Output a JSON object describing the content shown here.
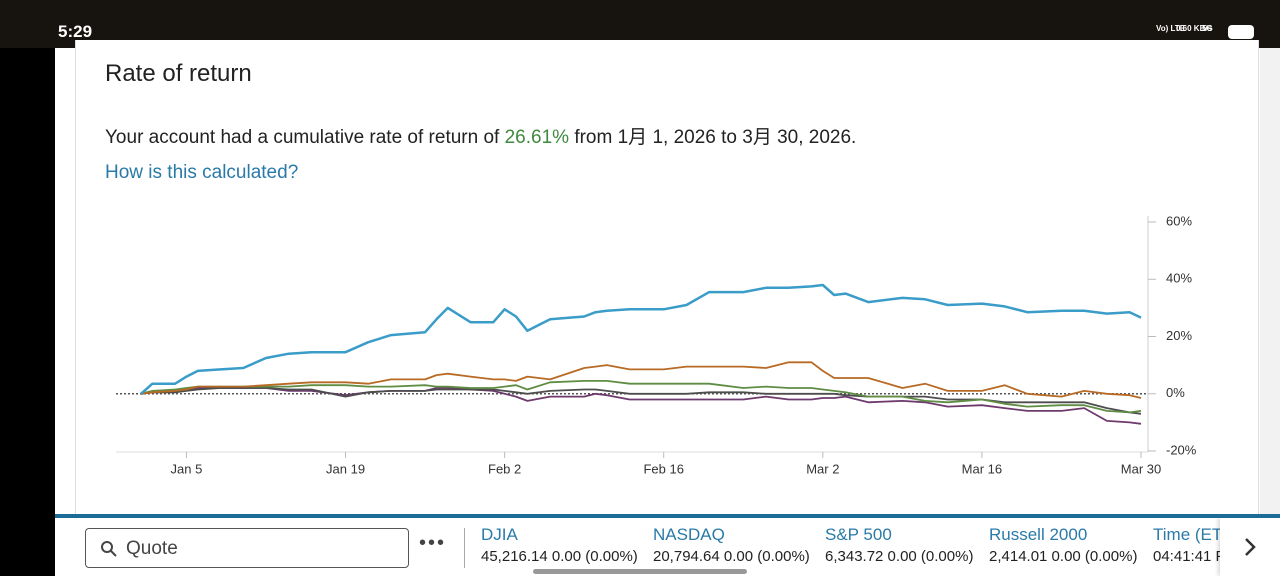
{
  "status_bar": {
    "time": "5:29",
    "network": "Vo) LTE",
    "speed": "0.60 KB/s",
    "signal": "5G"
  },
  "header": {
    "title": "Rate of return"
  },
  "summary": {
    "before": "Your account had a cumulative rate of return of ",
    "rate": "26.61%",
    "after": " from 1月 1, 2026 to 3月 30, 2026."
  },
  "link": "How is this calculated?",
  "chart_data": {
    "type": "line",
    "x": [
      "Jan 1",
      "Jan 2",
      "Jan 4",
      "Jan 5",
      "Jan 6",
      "Jan 8",
      "Jan 10",
      "Jan 12",
      "Jan 14",
      "Jan 16",
      "Jan 19",
      "Jan 21",
      "Jan 23",
      "Jan 26",
      "Jan 27",
      "Jan 28",
      "Jan 30",
      "Feb 1",
      "Feb 2",
      "Feb 3",
      "Feb 4",
      "Feb 6",
      "Feb 9",
      "Feb 10",
      "Feb 11",
      "Feb 13",
      "Feb 16",
      "Feb 18",
      "Feb 20",
      "Feb 23",
      "Feb 25",
      "Feb 27",
      "Mar 1",
      "Mar 2",
      "Mar 3",
      "Mar 4",
      "Mar 6",
      "Mar 9",
      "Mar 11",
      "Mar 13",
      "Mar 16",
      "Mar 18",
      "Mar 20",
      "Mar 23",
      "Mar 25",
      "Mar 27",
      "Mar 29",
      "Mar 30"
    ],
    "series": [
      {
        "color": "#3a9cc8",
        "values": [
          0,
          3.5,
          3.5,
          6,
          8,
          8.5,
          9,
          12.5,
          14,
          14.5,
          14.5,
          18,
          20.5,
          21.5,
          26,
          30,
          25,
          25,
          29.5,
          27,
          22,
          26,
          27,
          28.5,
          29,
          29.5,
          29.5,
          31,
          35.5,
          35.5,
          37,
          37,
          37.5,
          38,
          34.5,
          35,
          32,
          33.5,
          33,
          31,
          31.5,
          30.5,
          28.5,
          29,
          29,
          28,
          28.5,
          26.61
        ]
      },
      {
        "color": "#b86a24",
        "values": [
          0,
          0.5,
          1,
          1.5,
          2.5,
          2.5,
          2.5,
          3,
          3.5,
          4,
          4,
          3.5,
          5,
          5,
          6.5,
          7,
          6,
          5,
          5,
          4.5,
          6,
          5,
          9,
          9.5,
          10,
          8.5,
          8.5,
          9.5,
          9.5,
          9.5,
          9,
          11,
          11,
          8,
          5.5,
          5.5,
          5.5,
          2,
          3.5,
          1,
          1,
          3,
          0,
          -1,
          1,
          0,
          -0.5,
          -1.5
        ]
      },
      {
        "color": "#5f8d43",
        "values": [
          0,
          1,
          1.5,
          2,
          2.5,
          2.5,
          2.5,
          2.5,
          2.5,
          3,
          3,
          2.5,
          2.5,
          3,
          2.5,
          2.5,
          2,
          2,
          2.5,
          3,
          1.5,
          4,
          4.5,
          4.5,
          4.5,
          3.5,
          3.5,
          3.5,
          3.5,
          2,
          2.5,
          2,
          2,
          1.5,
          1,
          0.5,
          -1,
          -1,
          -2.5,
          -3,
          -2,
          -3.5,
          -4.5,
          -4,
          -4,
          -6,
          -6.5,
          -6
        ]
      },
      {
        "color": "#4d4d4d",
        "values": [
          0,
          0.5,
          0.5,
          1,
          1.5,
          2,
          2,
          2,
          1.5,
          1.5,
          -1,
          0.5,
          1,
          1,
          1.5,
          1.5,
          1.5,
          1.5,
          1,
          0.5,
          0,
          1,
          1.5,
          1.5,
          1,
          0,
          0,
          0,
          0.5,
          0.5,
          0,
          0,
          0,
          0,
          0,
          -0.5,
          -1,
          -1,
          -1,
          -2,
          -2,
          -3,
          -3,
          -3,
          -3,
          -5,
          -6.5,
          -7
        ]
      },
      {
        "color": "#6e3a6e",
        "values": [
          0,
          0.5,
          1,
          1.5,
          2,
          2,
          2,
          2,
          1,
          1,
          -0.5,
          0.5,
          1,
          1,
          2,
          2,
          1.5,
          1,
          0,
          -1,
          -2.5,
          -1,
          -1,
          0,
          -0.5,
          -2,
          -2,
          -2,
          -2,
          -2,
          -1,
          -2,
          -2,
          -1.5,
          -1.5,
          -1,
          -3,
          -2.5,
          -3,
          -4.5,
          -4,
          -5,
          -6,
          -6,
          -5,
          -9.5,
          -10,
          -10.5
        ]
      }
    ],
    "xlim": [
      "Jan 1",
      "Mar 30"
    ],
    "xticks": [
      "Jan 5",
      "Jan 19",
      "Feb 2",
      "Feb 16",
      "Mar 2",
      "Mar 16",
      "Mar 30"
    ],
    "ylim": [
      -20,
      60
    ],
    "yticks": [
      {
        "value": 60,
        "label": "60%"
      },
      {
        "value": 40,
        "label": "40%"
      },
      {
        "value": 20,
        "label": "20%"
      },
      {
        "value": 0,
        "label": "0%"
      },
      {
        "value": -20,
        "label": "-20%"
      }
    ]
  },
  "bottom_bar": {
    "search": "Quote",
    "indices": [
      {
        "name": "DJIA",
        "quote": "45,216.14 0.00 (0.00%)"
      },
      {
        "name": "NASDAQ",
        "quote": "20,794.64 0.00 (0.00%)"
      },
      {
        "name": "S&P 500",
        "quote": "6,343.72 0.00 (0.00%)"
      },
      {
        "name": "Russell 2000",
        "quote": "2,414.01 0.00 (0.00%)"
      },
      {
        "name": "Time (ET",
        "quote": "04:41:41 F"
      }
    ]
  }
}
